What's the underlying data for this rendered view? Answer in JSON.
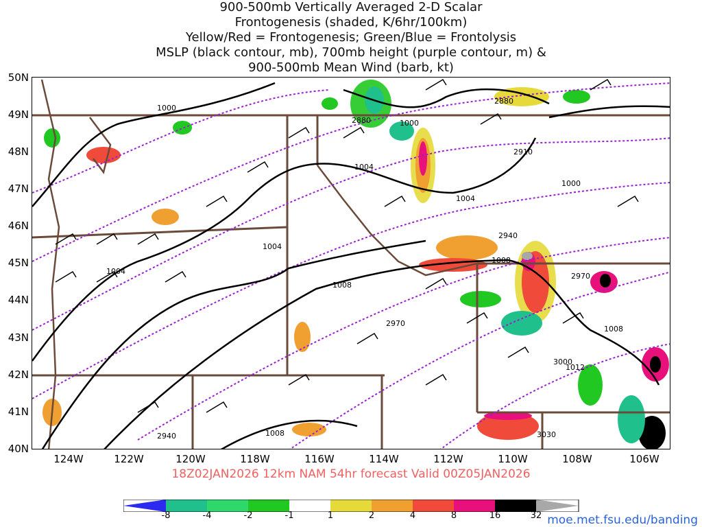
{
  "title_lines": [
    "900-500mb Vertically Averaged 2-D Scalar",
    "Frontogenesis (shaded, K/6hr/100km)",
    "Yellow/Red = Frontogenesis;  Green/Blue = Frontolysis",
    "MSLP (black contour, mb), 700mb height (purple contour, m) &",
    "900-500mb Mean Wind (barb, kt)"
  ],
  "footer": "18Z02JAN2026 12km NAM 54hr forecast Valid 00Z05JAN2026",
  "credit": "moe.met.fsu.edu/banding",
  "lat_labels": [
    "50N",
    "49N",
    "48N",
    "47N",
    "46N",
    "45N",
    "44N",
    "43N",
    "42N",
    "41N",
    "40N"
  ],
  "lon_labels": [
    "124W",
    "122W",
    "120W",
    "118W",
    "116W",
    "114W",
    "112W",
    "110W",
    "108W",
    "106W"
  ],
  "colorbar": {
    "labels": [
      "-8",
      "-4",
      "-2",
      "-1",
      "1",
      "2",
      "4",
      "8",
      "16",
      "32"
    ],
    "colors": [
      "#2b2bf0",
      "#1fc08c",
      "#2fd86a",
      "#21c821",
      "#ffffff",
      "#e6d93a",
      "#f0a030",
      "#f04a3a",
      "#e8107a",
      "#000000",
      "#a8a8a8"
    ]
  },
  "mslp_labels": [
    "1000",
    "1000",
    "1004",
    "1004",
    "1004",
    "1004",
    "1008",
    "1008",
    "1008",
    "1008",
    "1000",
    "1012"
  ],
  "height_labels": [
    "2880",
    "2880",
    "2910",
    "2940",
    "2940",
    "2970",
    "2970",
    "3000",
    "3030"
  ],
  "colors": {
    "mslp": "#000000",
    "height": "#9b1fd1",
    "border": "#6b4a3a",
    "barb": "#000000"
  }
}
